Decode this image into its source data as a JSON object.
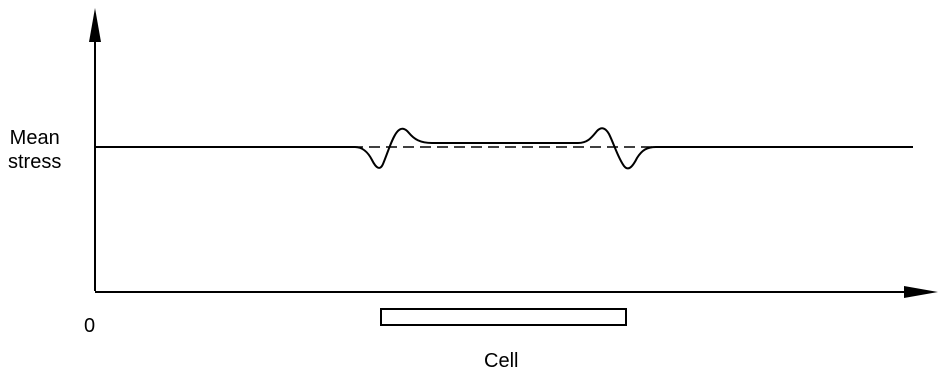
{
  "diagram": {
    "y_label_line1": "Mean",
    "y_label_line2": "stress",
    "origin_label": "0",
    "cell_label": "Cell",
    "colors": {
      "ink": "#000000",
      "background": "#ffffff"
    },
    "series": [
      {
        "style": "solid",
        "shape": "level with dip-then-peak at each cell edge, slightly raised between edges"
      },
      {
        "style": "dashed",
        "shape": "flat mean level across the cell"
      }
    ]
  }
}
